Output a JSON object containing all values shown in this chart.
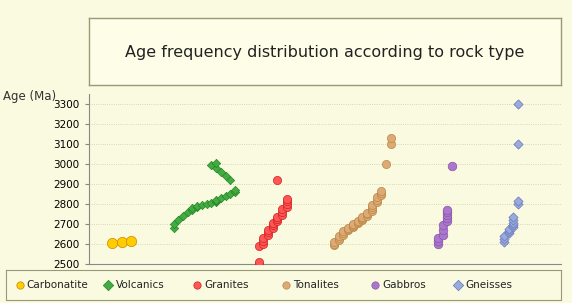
{
  "title": "Age frequency distribution according to rock type",
  "ylabel": "Age (Ma)",
  "ylim": [
    2500,
    3350
  ],
  "yticks": [
    2500,
    2600,
    2700,
    2800,
    2900,
    3000,
    3100,
    3200,
    3300
  ],
  "bg_color": "#FAFAE0",
  "plot_bg": "#FAFAE0",
  "title_bg": "#FEFEE8",
  "carbonatite": {
    "x": [
      0.05,
      0.07,
      0.09
    ],
    "y": [
      2605,
      2610,
      2613
    ],
    "color": "#FFCC00",
    "marker": "o",
    "size": 55,
    "edgecolor": "#CC8800"
  },
  "volcanics": {
    "x": [
      0.18,
      0.18,
      0.19,
      0.2,
      0.21,
      0.22,
      0.22,
      0.23,
      0.23,
      0.24,
      0.25,
      0.26,
      0.27,
      0.27,
      0.27,
      0.28,
      0.29,
      0.3,
      0.31,
      0.31,
      0.3,
      0.29,
      0.28,
      0.27,
      0.26,
      0.27
    ],
    "y": [
      2680,
      2700,
      2720,
      2740,
      2760,
      2770,
      2780,
      2785,
      2790,
      2795,
      2800,
      2805,
      2810,
      2815,
      2820,
      2830,
      2840,
      2850,
      2860,
      2870,
      2920,
      2940,
      2960,
      2980,
      2995,
      3005
    ],
    "color": "#44AA44",
    "marker": "D",
    "size": 18,
    "edgecolor": "#228822"
  },
  "granites": {
    "x": [
      0.36,
      0.36,
      0.36,
      0.37,
      0.37,
      0.37,
      0.38,
      0.38,
      0.38,
      0.39,
      0.39,
      0.39,
      0.4,
      0.4,
      0.4,
      0.41,
      0.41,
      0.41,
      0.42,
      0.42,
      0.42,
      0.42,
      0.4
    ],
    "y": [
      2500,
      2510,
      2590,
      2600,
      2615,
      2630,
      2645,
      2660,
      2670,
      2680,
      2695,
      2705,
      2715,
      2725,
      2735,
      2745,
      2758,
      2772,
      2786,
      2800,
      2813,
      2825,
      2920
    ],
    "color": "#FF5555",
    "marker": "o",
    "size": 35,
    "edgecolor": "#CC2222"
  },
  "tonalites": {
    "x": [
      0.52,
      0.52,
      0.52,
      0.53,
      0.53,
      0.53,
      0.54,
      0.54,
      0.54,
      0.55,
      0.55,
      0.55,
      0.56,
      0.56,
      0.56,
      0.56,
      0.57,
      0.57,
      0.57,
      0.58,
      0.58,
      0.58,
      0.58,
      0.59,
      0.59,
      0.59,
      0.6,
      0.6,
      0.6,
      0.6,
      0.61,
      0.61,
      0.61,
      0.62,
      0.62,
      0.62,
      0.63,
      0.64,
      0.64
    ],
    "y": [
      2595,
      2600,
      2610,
      2618,
      2627,
      2636,
      2645,
      2654,
      2662,
      2668,
      2673,
      2678,
      2683,
      2688,
      2693,
      2698,
      2703,
      2708,
      2713,
      2718,
      2723,
      2728,
      2734,
      2740,
      2748,
      2756,
      2765,
      2775,
      2785,
      2795,
      2808,
      2820,
      2832,
      2843,
      2853,
      2863,
      3000,
      3100,
      3130
    ],
    "color": "#DDAA77",
    "marker": "o",
    "size": 35,
    "edgecolor": "#BB8844"
  },
  "gabbros": {
    "x": [
      0.74,
      0.74,
      0.74,
      0.75,
      0.75,
      0.75,
      0.76,
      0.76,
      0.76,
      0.76,
      0.76,
      0.77
    ],
    "y": [
      2600,
      2615,
      2630,
      2645,
      2668,
      2695,
      2715,
      2730,
      2745,
      2760,
      2770,
      2990
    ],
    "color": "#AA77CC",
    "marker": "o",
    "size": 38,
    "edgecolor": "#8855AA"
  },
  "gneisses": {
    "x": [
      0.88,
      0.88,
      0.88,
      0.89,
      0.89,
      0.89,
      0.9,
      0.9,
      0.9,
      0.9,
      0.9,
      0.91,
      0.91,
      0.91,
      0.91
    ],
    "y": [
      2610,
      2625,
      2640,
      2653,
      2663,
      2673,
      2683,
      2693,
      2705,
      2718,
      2735,
      2800,
      2812,
      3100,
      3300
    ],
    "color": "#99AADD",
    "marker": "D",
    "size": 22,
    "edgecolor": "#6677BB"
  },
  "legend_items": [
    {
      "label": "Carbonatite",
      "color": "#FFCC00",
      "marker": "o",
      "edgecolor": "#CC8800"
    },
    {
      "label": "Volcanics",
      "color": "#44AA44",
      "marker": "D",
      "edgecolor": "#228822"
    },
    {
      "label": "Granites",
      "color": "#FF5555",
      "marker": "o",
      "edgecolor": "#CC2222"
    },
    {
      "label": "Tonalites",
      "color": "#DDAA77",
      "marker": "o",
      "edgecolor": "#BB8844"
    },
    {
      "label": "Gabbros",
      "color": "#AA77CC",
      "marker": "o",
      "edgecolor": "#8855AA"
    },
    {
      "label": "Gneisses",
      "color": "#99AADD",
      "marker": "D",
      "edgecolor": "#6677BB"
    }
  ]
}
